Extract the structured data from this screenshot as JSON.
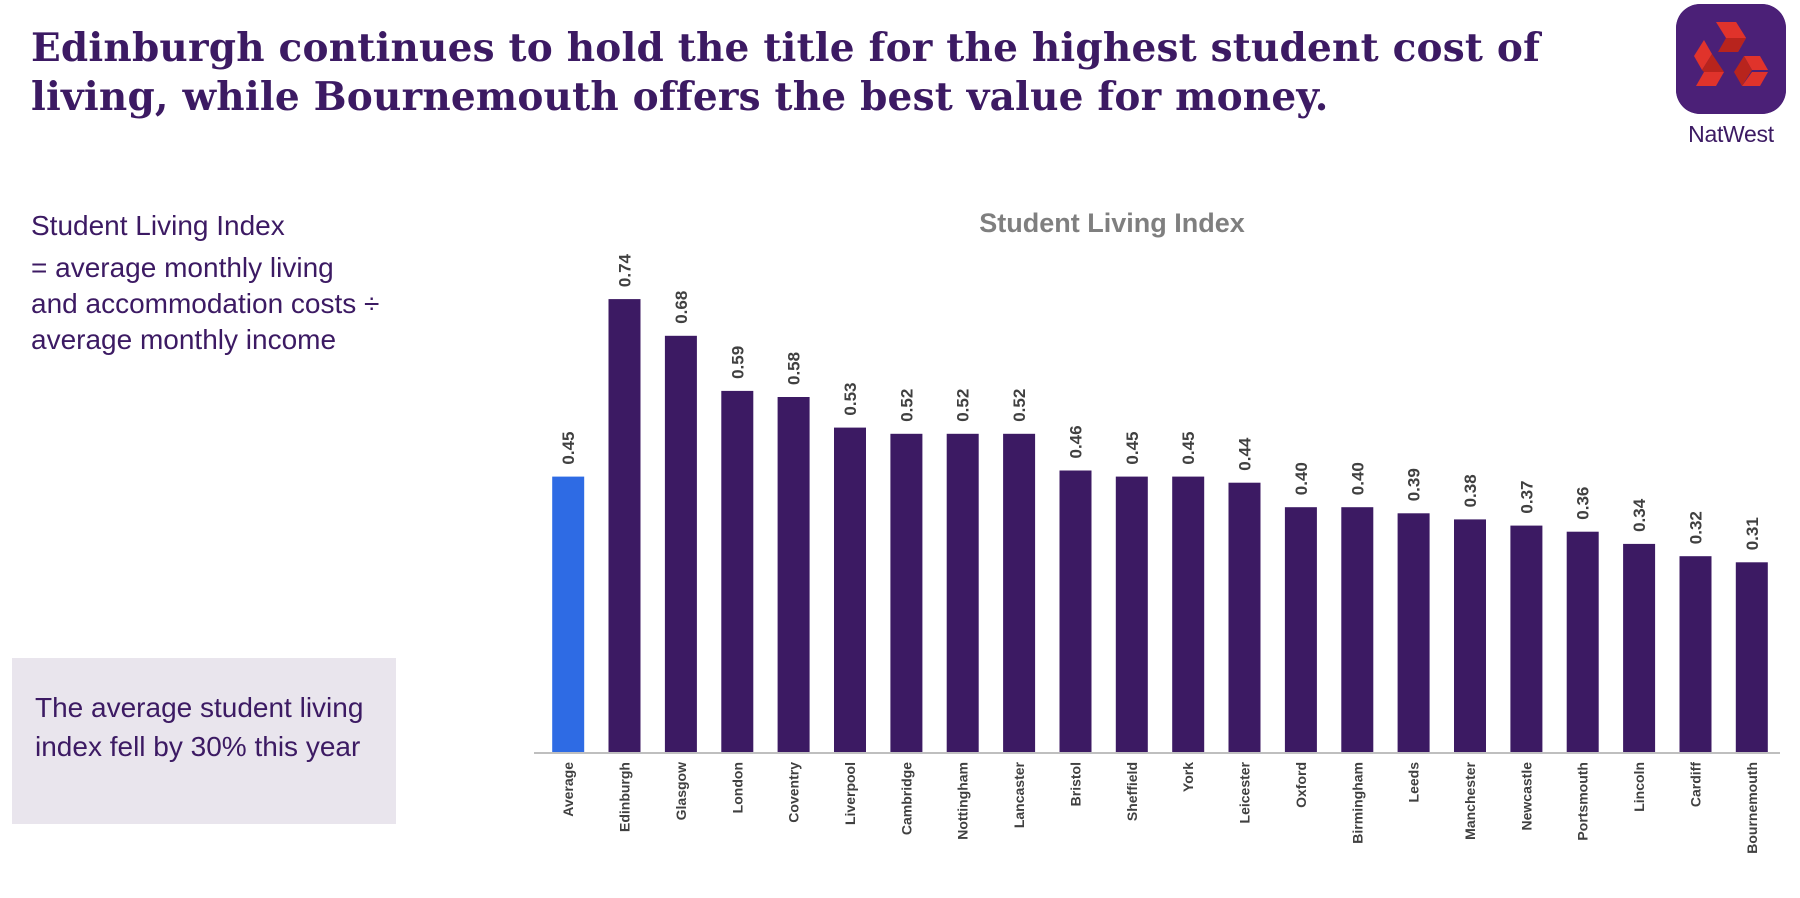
{
  "headline": {
    "line1": "Edinburgh continues to hold the title for the highest student cost of",
    "line2": "living, while Bournemouth offers the best value for money."
  },
  "logo": {
    "text": "NatWest",
    "icon": "natwest-cubes-logo"
  },
  "definition": {
    "title": "Student Living Index",
    "formula": "= average monthly living and accommodation costs ÷ average monthly income"
  },
  "callout": {
    "text": "The average student living index fell by 30% this year"
  },
  "colors": {
    "brand": "#3c1a63",
    "bar": "#3c1a63",
    "average_bar": "#2e6be4",
    "logo_bg": "#4b2077",
    "logo_red": "#e0332b",
    "callout_bg": "#e9e5ed"
  },
  "chart_data": {
    "type": "bar",
    "title": "Student Living Index",
    "xlabel": "",
    "ylabel": "",
    "ylim": [
      0,
      0.8
    ],
    "grid": false,
    "legend": "none",
    "categories": [
      "Average",
      "Edinburgh",
      "Glasgow",
      "London",
      "Coventry",
      "Liverpool",
      "Cambridge",
      "Nottingham",
      "Lancaster",
      "Bristol",
      "Sheffield",
      "York",
      "Leicester",
      "Oxford",
      "Birmingham",
      "Leeds",
      "Manchester",
      "Newcastle",
      "Portsmouth",
      "Lincoln",
      "Cardiff",
      "Bournemouth"
    ],
    "values": [
      0.45,
      0.74,
      0.68,
      0.59,
      0.58,
      0.53,
      0.52,
      0.52,
      0.52,
      0.46,
      0.45,
      0.45,
      0.44,
      0.4,
      0.4,
      0.39,
      0.38,
      0.37,
      0.36,
      0.34,
      0.32,
      0.31
    ],
    "data_labels": [
      "0.45",
      "0.74",
      "0.68",
      "0.59",
      "0.58",
      "0.53",
      "0.52",
      "0.52",
      "0.52",
      "0.46",
      "0.45",
      "0.45",
      "0.44",
      "0.40",
      "0.40",
      "0.39",
      "0.38",
      "0.37",
      "0.36",
      "0.34",
      "0.32",
      "0.31"
    ],
    "highlight_category": "Average"
  }
}
